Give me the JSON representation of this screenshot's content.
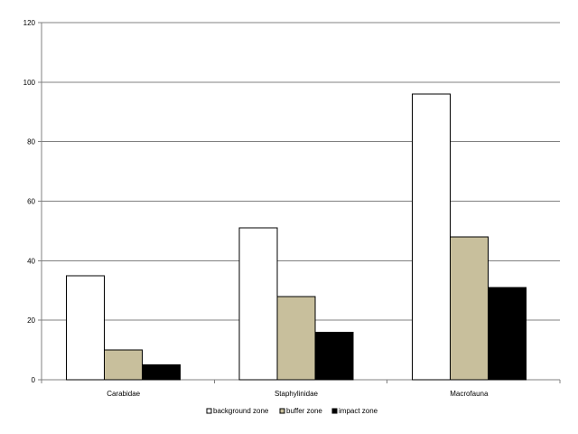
{
  "chart_data": {
    "type": "bar",
    "title": "",
    "xlabel": "",
    "ylabel": "",
    "categories": [
      "Carabidae",
      "Staphylinidae",
      "Macrofauna"
    ],
    "series": [
      {
        "name": "background zone",
        "values": [
          35,
          51,
          96
        ],
        "color": "#ffffff"
      },
      {
        "name": "buffer zone",
        "values": [
          10,
          28,
          48
        ],
        "color": "#c8bf9c"
      },
      {
        "name": "impact zone",
        "values": [
          5,
          16,
          31
        ],
        "color": "#000000"
      }
    ],
    "ylim": [
      0,
      120
    ],
    "yticks": [
      0,
      20,
      40,
      60,
      80,
      100,
      120
    ],
    "grid": true,
    "legend_position": "bottom"
  }
}
